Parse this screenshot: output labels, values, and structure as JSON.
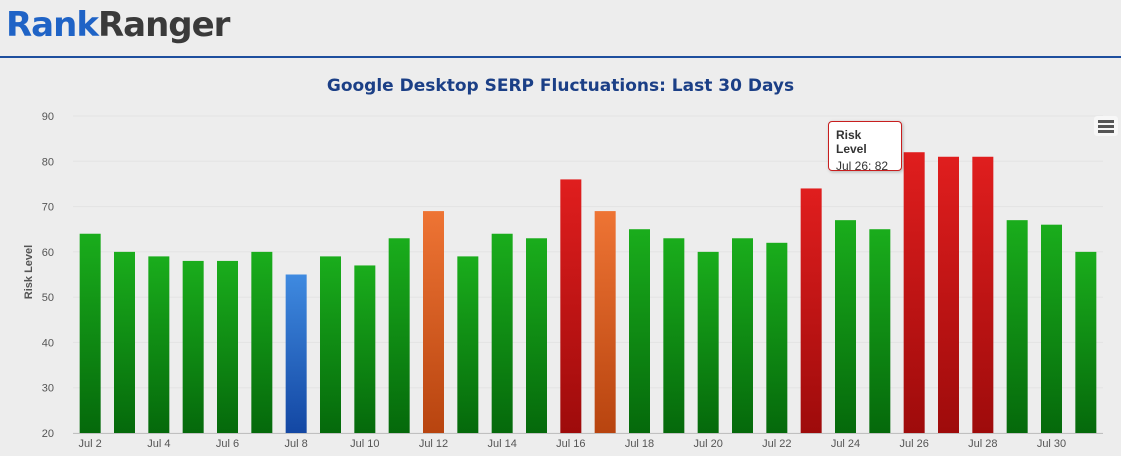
{
  "header": {
    "logo_part1": "Rank",
    "logo_part2": "Ranger"
  },
  "colors": {
    "green": "#16a117",
    "orange": "#e8692a",
    "red": "#d41818",
    "blue": "#3e86da",
    "title": "#1b3f86"
  },
  "tooltip": {
    "title": "Risk Level",
    "text": "Jul 26: 82"
  },
  "chart_data": {
    "type": "bar",
    "title": "Google Desktop SERP Fluctuations: Last 30 Days",
    "xlabel": "",
    "ylabel": "Risk Level",
    "ylim": [
      20,
      90
    ],
    "yticks": [
      20,
      30,
      40,
      50,
      60,
      70,
      80,
      90
    ],
    "grid": true,
    "categories": [
      "Jul 2",
      "Jul 3",
      "Jul 4",
      "Jul 5",
      "Jul 6",
      "Jul 7",
      "Jul 8",
      "Jul 9",
      "Jul 10",
      "Jul 11",
      "Jul 12",
      "Jul 13",
      "Jul 14",
      "Jul 15",
      "Jul 16",
      "Jul 17",
      "Jul 18",
      "Jul 19",
      "Jul 20",
      "Jul 21",
      "Jul 22",
      "Jul 23",
      "Jul 24",
      "Jul 25",
      "Jul 26",
      "Jul 27",
      "Jul 28",
      "Jul 29",
      "Jul 30",
      "Jul 31"
    ],
    "tick_labels": [
      "Jul 2",
      "",
      "Jul 4",
      "",
      "Jul 6",
      "",
      "Jul 8",
      "",
      "Jul 10",
      "",
      "Jul 12",
      "",
      "Jul 14",
      "",
      "Jul 16",
      "",
      "Jul 18",
      "",
      "Jul 20",
      "",
      "Jul 22",
      "",
      "Jul 24",
      "",
      "Jul 26",
      "",
      "Jul 28",
      "",
      "Jul 30",
      ""
    ],
    "values": [
      64,
      60,
      59,
      58,
      58,
      60,
      55,
      59,
      57,
      63,
      69,
      59,
      64,
      63,
      76,
      69,
      65,
      63,
      60,
      63,
      62,
      74,
      67,
      65,
      82,
      81,
      81,
      67,
      66,
      60
    ],
    "bar_levels": [
      "green",
      "green",
      "green",
      "green",
      "green",
      "green",
      "blue",
      "green",
      "green",
      "green",
      "orange",
      "green",
      "green",
      "green",
      "red",
      "orange",
      "green",
      "green",
      "green",
      "green",
      "green",
      "red",
      "green",
      "green",
      "red",
      "red",
      "red",
      "green",
      "green",
      "green"
    ]
  }
}
